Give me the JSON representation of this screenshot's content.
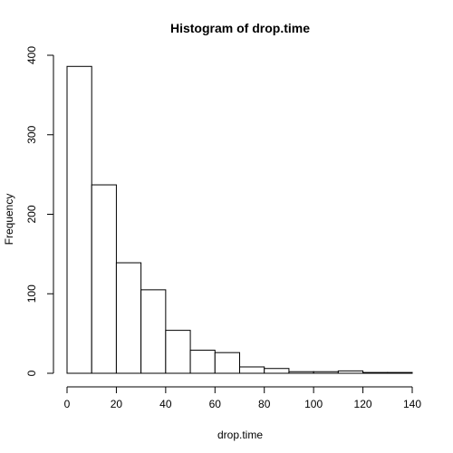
{
  "chart_data": {
    "type": "histogram",
    "title": "Histogram of drop.time",
    "xlabel": "drop.time",
    "ylabel": "Frequency",
    "bin_width": 10,
    "bins": [
      {
        "start": 0,
        "end": 10,
        "count": 386
      },
      {
        "start": 10,
        "end": 20,
        "count": 237
      },
      {
        "start": 20,
        "end": 30,
        "count": 139
      },
      {
        "start": 30,
        "end": 40,
        "count": 105
      },
      {
        "start": 40,
        "end": 50,
        "count": 54
      },
      {
        "start": 50,
        "end": 60,
        "count": 29
      },
      {
        "start": 60,
        "end": 70,
        "count": 26
      },
      {
        "start": 70,
        "end": 80,
        "count": 8
      },
      {
        "start": 80,
        "end": 90,
        "count": 6
      },
      {
        "start": 90,
        "end": 100,
        "count": 2
      },
      {
        "start": 100,
        "end": 110,
        "count": 2
      },
      {
        "start": 110,
        "end": 120,
        "count": 3
      },
      {
        "start": 120,
        "end": 130,
        "count": 1
      },
      {
        "start": 130,
        "end": 140,
        "count": 1
      }
    ],
    "xlim": [
      0,
      140
    ],
    "ylim": [
      0,
      400
    ],
    "xticks": [
      0,
      20,
      40,
      60,
      80,
      100,
      120,
      140
    ],
    "yticks": [
      0,
      100,
      200,
      300,
      400
    ],
    "grid": false,
    "legend": "none"
  }
}
